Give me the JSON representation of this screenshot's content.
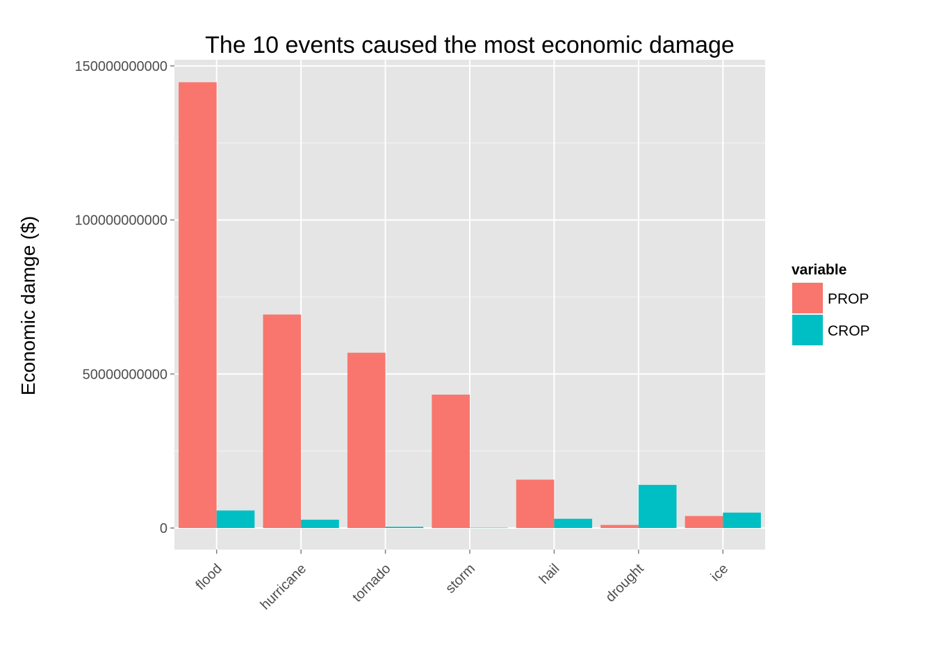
{
  "chart_data": {
    "type": "bar",
    "title": "The 10 events caused the most economic damage",
    "xlabel": "",
    "ylabel": "Economic damge ($)",
    "categories": [
      "flood",
      "hurricane",
      "tornado",
      "storm",
      "hail",
      "drought",
      "ice"
    ],
    "series": [
      {
        "name": "PROP",
        "color": "#F8766D",
        "values": [
          144700000000,
          69300000000,
          56900000000,
          43300000000,
          15700000000,
          1000000000,
          3900000000
        ]
      },
      {
        "name": "CROP",
        "color": "#00BFC4",
        "values": [
          5700000000,
          2700000000,
          400000000,
          100000000,
          3000000000,
          14000000000,
          5000000000
        ]
      }
    ],
    "ylim": [
      -7000000000,
      152000000000
    ],
    "yticks": [
      0,
      50000000000,
      100000000000,
      150000000000
    ],
    "ytick_labels": [
      "0",
      "50000000000",
      "100000000000",
      "150000000000"
    ],
    "grid": true,
    "legend": {
      "title": "variable",
      "placement": "right"
    },
    "panel_color": "#E5E5E5",
    "grid_color": "#FFFFFF"
  }
}
